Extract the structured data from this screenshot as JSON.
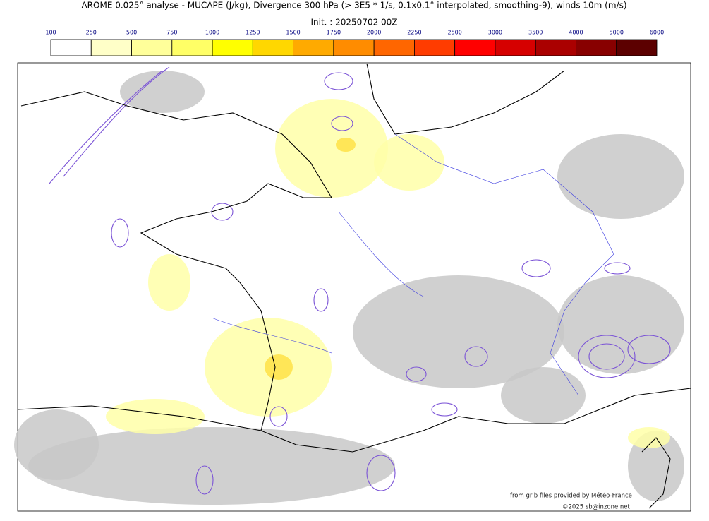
{
  "header": {
    "title": "AROME 0.025° analyse - MUCAPE (J/kg), Divergence 300 hPa (> 3E5 * 1/s, 0.1x0.1° interpolated, smoothing-9), winds 10m (m/s)",
    "init": "Init. : 20250702 00Z"
  },
  "colorbar": {
    "ticks": [
      100,
      250,
      500,
      750,
      1000,
      1250,
      1500,
      1750,
      2000,
      2250,
      2500,
      3000,
      3500,
      4000,
      5000,
      6000
    ],
    "colors": [
      "#ffffff",
      "#ffffc8",
      "#ffff9a",
      "#ffff66",
      "#ffff00",
      "#ffd700",
      "#ffaa00",
      "#ff8c00",
      "#ff6600",
      "#ff3c00",
      "#ff0000",
      "#d60000",
      "#aa0000",
      "#880000",
      "#5c0000"
    ]
  },
  "credits": {
    "source": "from grib files provided by Météo-France",
    "copyright": "©2025 sb@inzone.net"
  }
}
